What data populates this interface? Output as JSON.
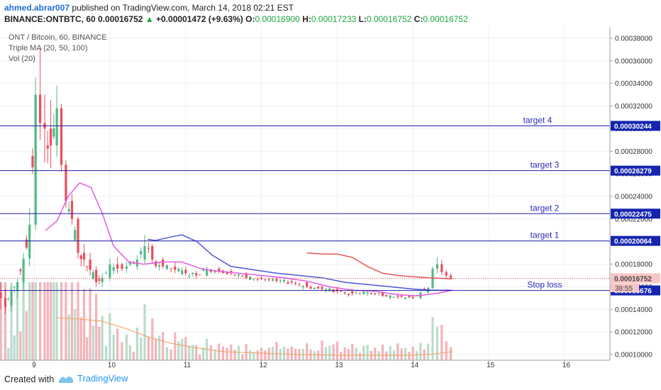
{
  "header": {
    "author": "ahmed.abrar007",
    "published_text": "published on TradingView.com, March 14, 2018 02:21 EST",
    "symbol_info": "BINANCE:ONTBTC, 60",
    "last_price": "0.00016752",
    "change_text": "+0.00001472 (+9.63%)",
    "open_label": "O:",
    "open_value": "0.00016900",
    "high_label": "H:",
    "high_value": "0.00017233",
    "low_label": "L:",
    "low_value": "0.00016752",
    "close_label": "C:",
    "close_value": "0.00016752"
  },
  "legend": {
    "line1": "ONT / Bitcoin, 60, BINANCE",
    "line2": "Triple MA (20, 50, 100)",
    "line3": "Vol (20)"
  },
  "footer": {
    "created_with": "Created with",
    "brand": "TradingView"
  },
  "colors": {
    "up": "#53b987",
    "down": "#eb4d5c",
    "vol_up": "#b9dccb",
    "vol_down": "#f3b3b9",
    "level_line": "#1f1fa8",
    "level_label_bg": "#1525b0",
    "ma20": "#e55ae0",
    "ma50": "#4c56d9",
    "ma100": "#e45757",
    "vol_ma": "#f0a060",
    "last_price": "#e44040"
  },
  "chart_data": {
    "type": "candlestick",
    "title": "ONT / Bitcoin, 60, BINANCE",
    "x_ticks": [
      "9",
      "10",
      "11",
      "12",
      "13",
      "14",
      "15",
      "16"
    ],
    "x_range": [
      8.55,
      16.6
    ],
    "ylim": [
      9.5e-05,
      0.00039
    ],
    "y_ticks": [
      "0.00010000",
      "0.00012000",
      "0.00014000",
      "0.00016000",
      "0.00018000",
      "0.00020000",
      "0.00022000",
      "0.00024000",
      "0.00026000",
      "0.00028000",
      "0.00030000",
      "0.00032000",
      "0.00034000",
      "0.00036000",
      "0.00038000"
    ],
    "grid": true,
    "levels": [
      {
        "name": "target 4",
        "price": 0.00030244,
        "label": "0.00030244"
      },
      {
        "name": "target 3",
        "price": 0.00026279,
        "label": "0.00026279"
      },
      {
        "name": "target 2",
        "price": 0.00022475,
        "label": "0.00022475"
      },
      {
        "name": "target 1",
        "price": 0.00020064,
        "label": "0.00020064"
      },
      {
        "name": "Stop loss",
        "price": 0.00015676,
        "label": "0.00015676"
      }
    ],
    "last_price": {
      "price": 0.00016752,
      "label": "0.00016752"
    },
    "countdown": {
      "price": 0.000159,
      "label": "38:55"
    },
    "ohlc_keypoints": [
      [
        8.56,
        0.000155,
        0.000164,
        0.00014,
        0.00015
      ],
      [
        8.62,
        0.00015,
        0.000158,
        0.000136,
        0.000142
      ],
      [
        8.7,
        0.000143,
        0.00016,
        0.000138,
        0.000156
      ],
      [
        8.78,
        0.000156,
        0.000168,
        0.00015,
        0.000164
      ],
      [
        8.86,
        0.000164,
        0.00019,
        0.000158,
        0.000185
      ],
      [
        8.94,
        0.000185,
        0.00023,
        0.000178,
        0.000215
      ],
      [
        9.02,
        0.000215,
        0.000345,
        0.00021,
        0.00033
      ],
      [
        9.08,
        0.00033,
        0.000372,
        0.00029,
        0.000305
      ],
      [
        9.14,
        0.000305,
        0.00033,
        0.00027,
        0.0003
      ],
      [
        9.22,
        0.0003,
        0.000325,
        0.000265,
        0.000285
      ],
      [
        9.3,
        0.000285,
        0.000338,
        0.000275,
        0.000318
      ],
      [
        9.36,
        0.000318,
        0.000322,
        0.000262,
        0.000268
      ],
      [
        9.42,
        0.000268,
        0.000272,
        0.00023,
        0.000236
      ],
      [
        9.5,
        0.000236,
        0.000242,
        0.000215,
        0.00022
      ],
      [
        9.58,
        0.00022,
        0.000222,
        0.000185,
        0.00019
      ],
      [
        9.66,
        0.00019,
        0.000198,
        0.000178,
        0.000184
      ],
      [
        9.74,
        0.000184,
        0.00019,
        0.00017,
        0.000175
      ],
      [
        9.82,
        0.000175,
        0.000178,
        0.00016,
        0.000164
      ],
      [
        9.9,
        0.000164,
        0.000172,
        0.00016,
        0.000168
      ],
      [
        10.0,
        0.000168,
        0.000185,
        0.000165,
        0.00018
      ],
      [
        10.1,
        0.00018,
        0.000186,
        0.000172,
        0.000176
      ],
      [
        10.22,
        0.000176,
        0.000182,
        0.000172,
        0.000178
      ],
      [
        10.36,
        0.000178,
        0.000188,
        0.000175,
        0.000184
      ],
      [
        10.46,
        0.000184,
        0.000206,
        0.00018,
        0.000196
      ],
      [
        10.56,
        0.000196,
        0.000198,
        0.00018,
        0.000184
      ],
      [
        10.7,
        0.000184,
        0.000186,
        0.000176,
        0.000178
      ],
      [
        10.86,
        0.000178,
        0.000182,
        0.000172,
        0.000175
      ],
      [
        11.0,
        0.000175,
        0.000178,
        0.00017,
        0.000172
      ],
      [
        11.14,
        0.000172,
        0.000174,
        0.000168,
        0.00017
      ],
      [
        11.28,
        0.00017,
        0.000178,
        0.000169,
        0.000176
      ],
      [
        11.44,
        0.000176,
        0.000178,
        0.000172,
        0.000174
      ],
      [
        11.6,
        0.000174,
        0.000176,
        0.00017,
        0.000172
      ],
      [
        11.8,
        0.000172,
        0.000173,
        0.000167,
        0.000168
      ],
      [
        12.0,
        0.000168,
        0.00017,
        0.000166,
        0.000167
      ],
      [
        12.2,
        0.000167,
        0.000169,
        0.000164,
        0.000165
      ],
      [
        12.4,
        0.000165,
        0.000167,
        0.000162,
        0.000164
      ],
      [
        12.6,
        0.000164,
        0.000165,
        0.000159,
        0.00016
      ],
      [
        12.8,
        0.00016,
        0.000162,
        0.000156,
        0.000158
      ],
      [
        13.0,
        0.000158,
        0.00016,
        0.000154,
        0.000156
      ],
      [
        13.2,
        0.000156,
        0.000158,
        0.000152,
        0.000154
      ],
      [
        13.4,
        0.000154,
        0.000157,
        0.000152,
        0.000155
      ],
      [
        13.6,
        0.000155,
        0.000156,
        0.000151,
        0.000152
      ],
      [
        13.8,
        0.000152,
        0.000154,
        0.000149,
        0.000151
      ],
      [
        14.0,
        0.000151,
        0.000153,
        0.000149,
        0.00015
      ],
      [
        14.1,
        0.00015,
        0.000156,
        0.000149,
        0.000155
      ],
      [
        14.2,
        0.000155,
        0.00016,
        0.000154,
        0.000159
      ],
      [
        14.26,
        0.000159,
        0.000178,
        0.000158,
        0.000176
      ],
      [
        14.32,
        0.000176,
        0.000186,
        0.000172,
        0.00018
      ],
      [
        14.38,
        0.00018,
        0.000184,
        0.00017,
        0.000173
      ],
      [
        14.44,
        0.000173,
        0.000175,
        0.000168,
        0.00017
      ],
      [
        14.5,
        0.00017,
        0.000172,
        0.000167,
        0.000168
      ]
    ],
    "ma20": [
      [
        9.15,
        0.00021
      ],
      [
        9.3,
        0.000218
      ],
      [
        9.45,
        0.00024
      ],
      [
        9.6,
        0.000252
      ],
      [
        9.75,
        0.000248
      ],
      [
        9.9,
        0.000225
      ],
      [
        10.05,
        0.000196
      ],
      [
        10.25,
        0.000182
      ],
      [
        10.45,
        0.00018
      ],
      [
        10.7,
        0.000182
      ],
      [
        10.95,
        0.000182
      ],
      [
        11.2,
        0.000176
      ],
      [
        11.4,
        0.000174
      ],
      [
        11.7,
        0.000172
      ],
      [
        12.0,
        0.00017
      ],
      [
        12.3,
        0.000168
      ],
      [
        12.6,
        0.000165
      ],
      [
        12.9,
        0.00016
      ],
      [
        13.2,
        0.000157
      ],
      [
        13.5,
        0.000156
      ],
      [
        13.8,
        0.000153
      ],
      [
        14.05,
        0.000152
      ],
      [
        14.3,
        0.000154
      ],
      [
        14.52,
        0.000157
      ]
    ],
    "ma50": [
      [
        10.5,
        0.000202
      ],
      [
        10.6,
        0.000201
      ],
      [
        10.8,
        0.000204
      ],
      [
        10.95,
        0.000206
      ],
      [
        11.15,
        0.0002
      ],
      [
        11.35,
        0.000188
      ],
      [
        11.6,
        0.000178
      ],
      [
        11.9,
        0.000175
      ],
      [
        12.2,
        0.000172
      ],
      [
        12.5,
        0.00017
      ],
      [
        12.8,
        0.000168
      ],
      [
        13.1,
        0.000164
      ],
      [
        13.4,
        0.000162
      ],
      [
        13.7,
        0.00016
      ],
      [
        14.0,
        0.000158
      ],
      [
        14.25,
        0.000157
      ],
      [
        14.52,
        0.000157
      ]
    ],
    "ma100": [
      [
        12.6,
        0.00019
      ],
      [
        12.8,
        0.000189
      ],
      [
        13.0,
        0.000189
      ],
      [
        13.2,
        0.000186
      ],
      [
        13.4,
        0.000178
      ],
      [
        13.6,
        0.000172
      ],
      [
        13.8,
        0.00017
      ],
      [
        14.0,
        0.000169
      ],
      [
        14.2,
        0.000168
      ],
      [
        14.52,
        0.000167
      ]
    ]
  }
}
